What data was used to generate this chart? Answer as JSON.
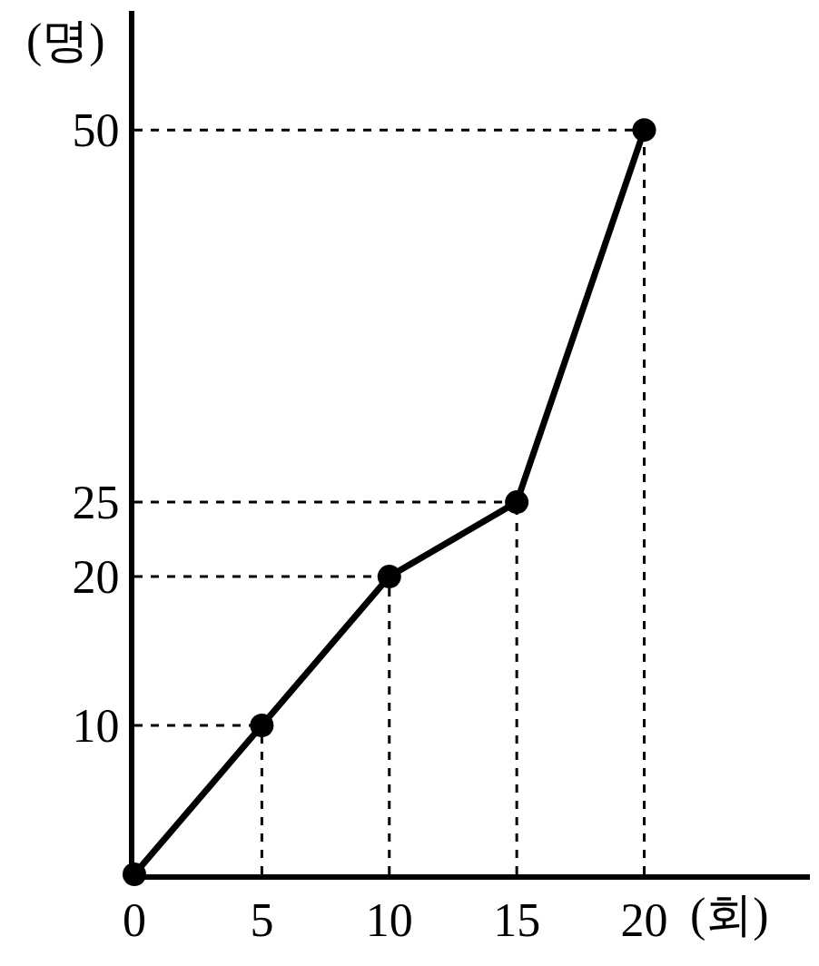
{
  "chart_data": {
    "type": "line",
    "xlabel": "(회)",
    "ylabel": "(명)",
    "x": [
      0,
      5,
      10,
      15,
      20
    ],
    "series": [
      {
        "color": "#000000",
        "values": [
          0,
          10,
          20,
          25,
          50
        ]
      }
    ],
    "xlim": [
      0,
      26.5
    ],
    "ylim": [
      0,
      58
    ],
    "xticks": [
      0,
      5,
      10,
      15,
      20
    ],
    "yticks": [
      10,
      20,
      25,
      50
    ],
    "ref_lines": [
      {
        "axis": "y",
        "value": 10,
        "line_style": "dashed"
      },
      {
        "axis": "y",
        "value": 20,
        "line_style": "dashed"
      },
      {
        "axis": "y",
        "value": 25,
        "line_style": "dashed"
      },
      {
        "axis": "y",
        "value": 50,
        "line_style": "dashed"
      },
      {
        "axis": "x",
        "value": 5,
        "line_style": "dashed"
      },
      {
        "axis": "x",
        "value": 10,
        "line_style": "dashed"
      },
      {
        "axis": "x",
        "value": 15,
        "line_style": "dashed"
      },
      {
        "axis": "x",
        "value": 20,
        "line_style": "dashed"
      }
    ],
    "marker": "circle",
    "line_style": "solid"
  }
}
